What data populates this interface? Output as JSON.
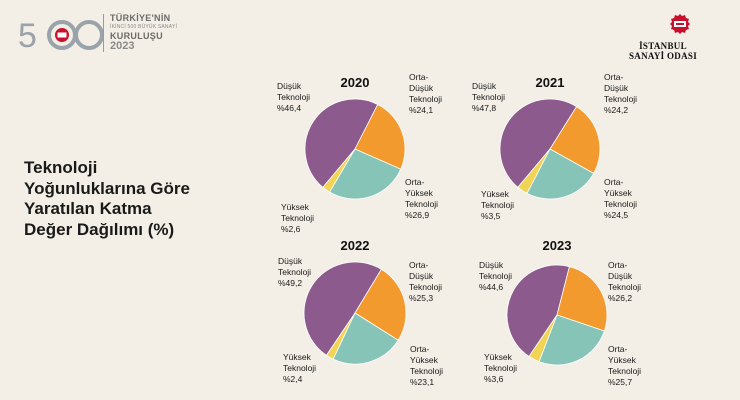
{
  "header": {
    "logo_number": "500",
    "logo_lines": [
      "TÜRKİYE'NİN",
      "İKİNCİ 500 BÜYÜK SANAYİ",
      "KURULUŞU",
      "2023"
    ],
    "org_lines": [
      "İSTANBUL",
      "SANAYİ ODASI"
    ]
  },
  "title_lines": [
    "Teknoloji",
    "Yoğunluklarına Göre",
    "Yaratılan Katma",
    "Değer Dağılımı (%)"
  ],
  "colors": {
    "dusuk": "#8c5a8c",
    "orta_dusuk": "#f39a2e",
    "orta_yuksek": "#86c4b8",
    "yuksek": "#f1d455",
    "background": "#f3efe6"
  },
  "chart_data": [
    {
      "type": "pie",
      "title": "2020",
      "slices": [
        {
          "label": [
            "Düşük",
            "Teknoloji"
          ],
          "display": "%46,4",
          "value": 46.4,
          "color_key": "dusuk"
        },
        {
          "label": [
            "Orta-",
            "Düşük",
            "Teknoloji"
          ],
          "display": "%24,1",
          "value": 24.1,
          "color_key": "orta_dusuk"
        },
        {
          "label": [
            "Orta-",
            "Yüksek",
            "Teknoloji"
          ],
          "display": "%26,9",
          "value": 26.9,
          "color_key": "orta_yuksek"
        },
        {
          "label": [
            "Yüksek",
            "Teknoloji"
          ],
          "display": "%2,6",
          "value": 2.6,
          "color_key": "yuksek"
        }
      ]
    },
    {
      "type": "pie",
      "title": "2021",
      "slices": [
        {
          "label": [
            "Düşük",
            "Teknoloji"
          ],
          "display": "%47,8",
          "value": 47.8,
          "color_key": "dusuk"
        },
        {
          "label": [
            "Orta-",
            "Düşük",
            "Teknoloji"
          ],
          "display": "%24,2",
          "value": 24.2,
          "color_key": "orta_dusuk"
        },
        {
          "label": [
            "Orta-",
            "Yüksek",
            "Teknoloji"
          ],
          "display": "%24,5",
          "value": 24.5,
          "color_key": "orta_yuksek"
        },
        {
          "label": [
            "Yüksek",
            "Teknoloji"
          ],
          "display": "%3,5",
          "value": 3.5,
          "color_key": "yuksek"
        }
      ]
    },
    {
      "type": "pie",
      "title": "2022",
      "slices": [
        {
          "label": [
            "Düşük",
            "Teknoloji"
          ],
          "display": "%49,2",
          "value": 49.2,
          "color_key": "dusuk"
        },
        {
          "label": [
            "Orta-",
            "Düşük",
            "Teknoloji"
          ],
          "display": "%25,3",
          "value": 25.3,
          "color_key": "orta_dusuk"
        },
        {
          "label": [
            "Orta-",
            "Yüksek",
            "Teknoloji"
          ],
          "display": "%23,1",
          "value": 23.1,
          "color_key": "orta_yuksek"
        },
        {
          "label": [
            "Yüksek",
            "Teknoloji"
          ],
          "display": "%2,4",
          "value": 2.4,
          "color_key": "yuksek"
        }
      ]
    },
    {
      "type": "pie",
      "title": "2023",
      "slices": [
        {
          "label": [
            "Düşük",
            "Teknoloji"
          ],
          "display": "%44,6",
          "value": 44.6,
          "color_key": "dusuk"
        },
        {
          "label": [
            "Orta-",
            "Düşük",
            "Teknoloji"
          ],
          "display": "%26,2",
          "value": 26.2,
          "color_key": "orta_dusuk"
        },
        {
          "label": [
            "Orta-",
            "Yüksek",
            "Teknoloji"
          ],
          "display": "%25,7",
          "value": 25.7,
          "color_key": "orta_yuksek"
        },
        {
          "label": [
            "Yüksek",
            "Teknoloji"
          ],
          "display": "%3,6",
          "value": 3.6,
          "color_key": "yuksek"
        }
      ]
    }
  ]
}
